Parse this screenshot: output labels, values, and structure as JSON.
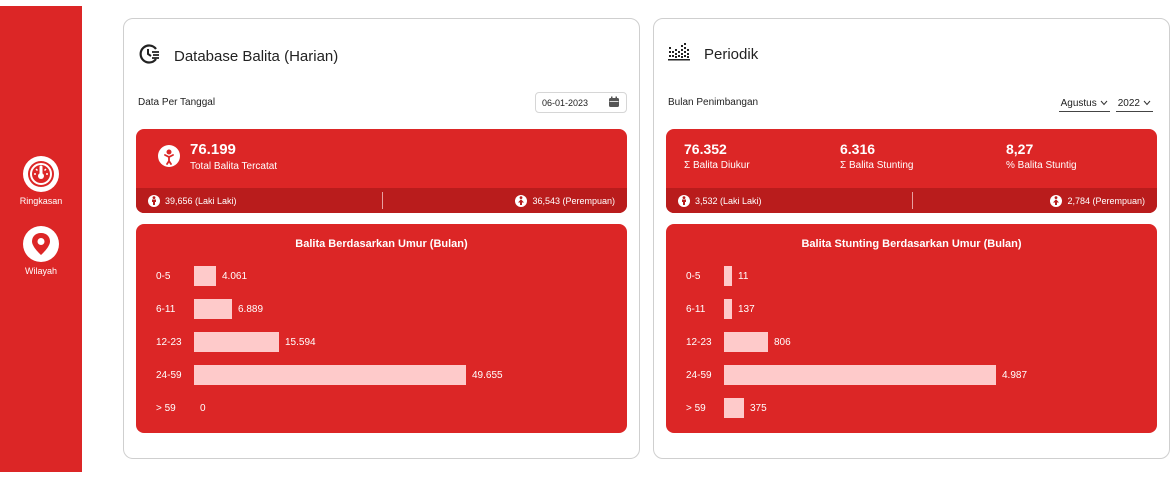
{
  "sidebar": {
    "items": [
      {
        "label": "Ringkasan",
        "icon": "speedometer-icon"
      },
      {
        "label": "Wilayah",
        "icon": "map-pin-icon"
      }
    ],
    "color": "#dc2626"
  },
  "left_card": {
    "title": "Database Balita (Harian)",
    "sub_label": "Data Per Tanggal",
    "date_value": "06-01-2023",
    "total_value": "76.199",
    "total_label": "Total Balita Tercatat",
    "male": "39,656 (Laki Laki)",
    "female": "36,543 (Perempuan)",
    "chart_title": "Balita Berdasarkan Umur (Bulan)"
  },
  "right_card": {
    "title": "Periodik",
    "sub_label": "Bulan Penimbangan",
    "month": "Agustus",
    "year": "2022",
    "stats": [
      {
        "value": "76.352",
        "label": "Σ Balita Diukur"
      },
      {
        "value": "6.316",
        "label": "Σ Balita Stunting"
      },
      {
        "value": "8,27",
        "label": "% Balita Stuntig"
      }
    ],
    "male": "3,532 (Laki Laki)",
    "female": "2,784 (Perempuan)",
    "chart_title": "Balita Stunting Berdasarkan Umur (Bulan)"
  },
  "chart_data": [
    {
      "type": "bar",
      "orientation": "horizontal",
      "title": "Balita Berdasarkan Umur (Bulan)",
      "categories": [
        "0-5",
        "6-11",
        "12-23",
        "24-59",
        "> 59"
      ],
      "values": [
        4061,
        6889,
        15594,
        49655,
        0
      ],
      "labels": [
        "4.061",
        "6.889",
        "15.594",
        "49.655",
        "0"
      ],
      "xlim": [
        0,
        49655
      ]
    },
    {
      "type": "bar",
      "orientation": "horizontal",
      "title": "Balita Stunting Berdasarkan Umur (Bulan)",
      "categories": [
        "0-5",
        "6-11",
        "12-23",
        "24-59",
        "> 59"
      ],
      "values": [
        11,
        137,
        806,
        4987,
        375
      ],
      "labels": [
        "11",
        "137",
        "806",
        "4.987",
        "375"
      ],
      "xlim": [
        0,
        4987
      ]
    }
  ]
}
